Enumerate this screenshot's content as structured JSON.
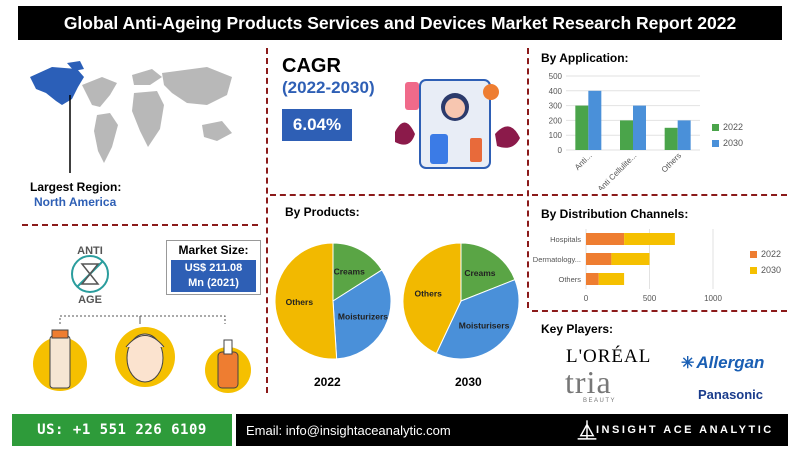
{
  "title": "Global Anti-Ageing Products Services and Devices Market Research Report 2022",
  "region": {
    "label": "Largest Region:",
    "value": "North America"
  },
  "anti_age": {
    "top": "ANTI",
    "bottom": "AGE"
  },
  "market_size": {
    "label": "Market Size:",
    "value_line1": "US$ 211.08",
    "value_line2": "Mn  (2021)"
  },
  "cagr": {
    "title": "CAGR",
    "period": "(2022-2030)",
    "value": "6.04%"
  },
  "sections": {
    "application": "By Application:",
    "products": "By Products:",
    "distribution": "By Distribution Channels:",
    "key_players": "Key Players:"
  },
  "chart_data": [
    {
      "type": "bar",
      "title": "By Application:",
      "categories": [
        "Anti...",
        "Anti Cellulite...",
        "Others"
      ],
      "series": [
        {
          "name": "2022",
          "values": [
            300,
            200,
            150
          ],
          "color": "#4aa44a"
        },
        {
          "name": "2030",
          "values": [
            400,
            300,
            200
          ],
          "color": "#4a90d9"
        }
      ],
      "ylim": [
        0,
        500
      ],
      "yticks": [
        "0",
        "100",
        "200",
        "300",
        "400",
        "500"
      ],
      "grid": true,
      "legend": "right"
    },
    {
      "type": "pie",
      "title": "2022",
      "labels": [
        "Creams",
        "Moisturizers",
        "Others"
      ],
      "values": [
        16,
        33,
        51
      ],
      "colors": [
        "#5aa545",
        "#4a90d9",
        "#f2b900"
      ]
    },
    {
      "type": "pie",
      "title": "2030",
      "labels": [
        "Creams",
        "Moisturisers",
        "Others"
      ],
      "values": [
        19,
        38,
        43
      ],
      "colors": [
        "#5aa545",
        "#4a90d9",
        "#f2b900"
      ]
    },
    {
      "type": "bar",
      "orientation": "horizontal",
      "title": "By Distribution Channels:",
      "categories": [
        "Hospitals",
        "Dermatology...",
        "Others"
      ],
      "series": [
        {
          "name": "2022",
          "values": [
            300,
            200,
            100
          ],
          "color": "#ee7d31"
        },
        {
          "name": "2030",
          "values": [
            400,
            300,
            200
          ],
          "color": "#f5c000"
        }
      ],
      "stacked": true,
      "xlim": [
        0,
        1000
      ],
      "xticks": [
        "0",
        "500",
        "1000"
      ],
      "grid": true,
      "legend": "right"
    }
  ],
  "key_players": [
    "L'ORÉAL",
    "tria",
    "BEAUTY",
    "Allergan",
    "Panasonic"
  ],
  "footer": {
    "phone": "US: +1 551 226 6109",
    "email": "Email: info@insightaceanalytic.com",
    "brand": "INSIGHT ACE ANALYTIC"
  },
  "colors": {
    "accent": "#2e5fb5",
    "divider": "#8b1a1a",
    "phone_bg": "#2e9b3a"
  }
}
